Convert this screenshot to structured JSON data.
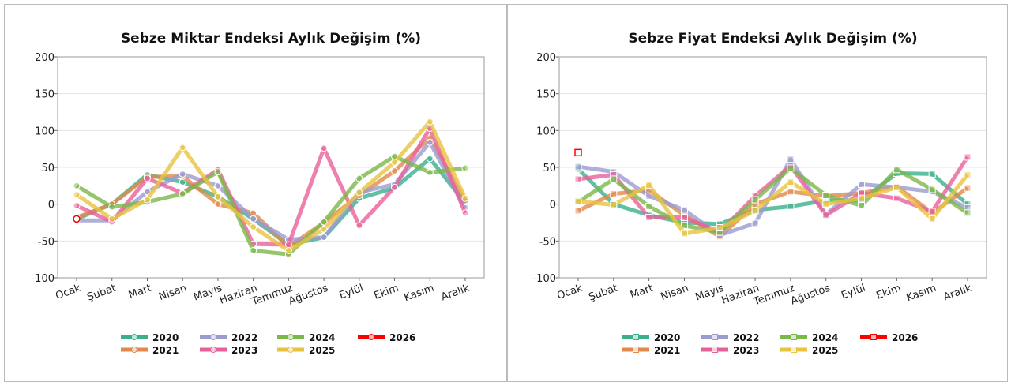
{
  "chart_data": [
    {
      "type": "line",
      "title": "Sebze Miktar Endeksi Aylık Değişim (%)",
      "marker": "circle",
      "categories": [
        "Ocak",
        "Şubat",
        "Mart",
        "Nisan",
        "Mayıs",
        "Haziran",
        "Temmuz",
        "Ağustos",
        "Eylül",
        "Ekim",
        "Kasım",
        "Aralık"
      ],
      "ylim": [
        -100,
        200
      ],
      "yticks": [
        -100,
        -50,
        0,
        50,
        100,
        150,
        200
      ],
      "grid": true,
      "legend_placement": "bottom",
      "series": [
        {
          "name": "2020",
          "color": "#3aaf8c",
          "values": [
            -20,
            0,
            40,
            30,
            10,
            -20,
            -55,
            -45,
            8,
            22,
            62,
            2
          ]
        },
        {
          "name": "2021",
          "color": "#e0894a",
          "values": [
            -18,
            0,
            37,
            38,
            0,
            -12,
            -58,
            -25,
            12,
            45,
            90,
            5
          ]
        },
        {
          "name": "2022",
          "color": "#9b9bd0",
          "values": [
            -22,
            -22,
            17,
            41,
            25,
            -20,
            -48,
            -45,
            16,
            27,
            84,
            -5
          ]
        },
        {
          "name": "2023",
          "color": "#e8609a",
          "values": [
            -2,
            -24,
            35,
            15,
            47,
            -54,
            -55,
            76,
            -29,
            23,
            103,
            -12
          ]
        },
        {
          "name": "2024",
          "color": "#7ab84a",
          "values": [
            25,
            -4,
            3,
            14,
            44,
            -63,
            -68,
            -24,
            35,
            65,
            43,
            49
          ]
        },
        {
          "name": "2025",
          "color": "#e8c340",
          "values": [
            13,
            -20,
            6,
            77,
            10,
            -31,
            -63,
            -34,
            16,
            57,
            112,
            8
          ]
        },
        {
          "name": "2026",
          "color": "#ff0000",
          "values": [
            -20,
            null,
            null,
            null,
            null,
            null,
            null,
            null,
            null,
            null,
            null,
            null
          ]
        }
      ]
    },
    {
      "type": "line",
      "title": "Sebze Fiyat Endeksi Aylık Değişim (%)",
      "marker": "square",
      "categories": [
        "Ocak",
        "Şubat",
        "Mart",
        "Nisan",
        "Mayıs",
        "Haziran",
        "Temmuz",
        "Ağustos",
        "Eylül",
        "Ekim",
        "Kasım",
        "Aralık"
      ],
      "ylim": [
        -100,
        200
      ],
      "yticks": [
        -100,
        -50,
        0,
        50,
        100,
        150,
        200
      ],
      "grid": true,
      "legend_placement": "bottom",
      "series": [
        {
          "name": "2020",
          "color": "#3aaf8c",
          "values": [
            48,
            0,
            -15,
            -25,
            -27,
            -8,
            -3,
            5,
            5,
            42,
            41,
            0
          ]
        },
        {
          "name": "2021",
          "color": "#e0894a",
          "values": [
            -9,
            14,
            19,
            -15,
            -44,
            0,
            17,
            11,
            15,
            24,
            -12,
            22
          ]
        },
        {
          "name": "2022",
          "color": "#9b9bd0",
          "values": [
            51,
            44,
            11,
            -8,
            -42,
            -26,
            61,
            -14,
            27,
            23,
            17,
            -5
          ]
        },
        {
          "name": "2023",
          "color": "#e8609a",
          "values": [
            34,
            40,
            -18,
            -18,
            -38,
            11,
            52,
            -15,
            15,
            8,
            -10,
            64
          ]
        },
        {
          "name": "2024",
          "color": "#7ab84a",
          "values": [
            3,
            34,
            -3,
            -29,
            -38,
            6,
            49,
            12,
            -2,
            47,
            20,
            -12
          ]
        },
        {
          "name": "2025",
          "color": "#e8c340",
          "values": [
            4,
            -1,
            26,
            -40,
            -32,
            -9,
            30,
            0,
            8,
            23,
            -20,
            40
          ]
        },
        {
          "name": "2026",
          "color": "#ff0000",
          "values": [
            70,
            null,
            null,
            null,
            null,
            null,
            null,
            null,
            null,
            null,
            null,
            null
          ]
        }
      ]
    }
  ]
}
